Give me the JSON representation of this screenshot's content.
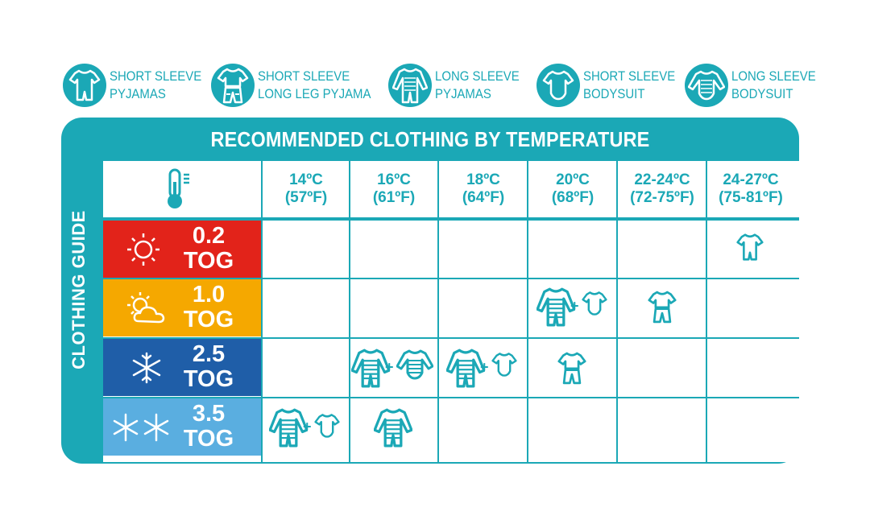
{
  "legend": [
    {
      "line1": "SHORT SLEEVE",
      "line2": "PYJAMAS",
      "icon": "short-sleeve-pyjamas-icon"
    },
    {
      "line1": "SHORT SLEEVE",
      "line2": "LONG LEG PYJAMA",
      "icon": "short-sleeve-long-leg-pyjama-icon"
    },
    {
      "line1": "LONG SLEEVE",
      "line2": "PYJAMAS",
      "icon": "long-sleeve-pyjamas-icon"
    },
    {
      "line1": "SHORT SLEEVE",
      "line2": "BODYSUIT",
      "icon": "short-sleeve-bodysuit-icon"
    },
    {
      "line1": "LONG SLEEVE",
      "line2": "BODYSUIT",
      "icon": "long-sleeve-bodysuit-icon"
    }
  ],
  "title": "RECOMMENDED CLOTHING BY TEMPERATURE",
  "side_label": "CLOTHING GUIDE",
  "header_icon": "thermometer-icon",
  "temperatures": [
    {
      "c": "14ºC",
      "f": "(57ºF)"
    },
    {
      "c": "16ºC",
      "f": "(61ºF)"
    },
    {
      "c": "18ºC",
      "f": "(64ºF)"
    },
    {
      "c": "20ºC",
      "f": "(68ºF)"
    },
    {
      "c": "22-24ºC",
      "f": "(72-75ºF)"
    },
    {
      "c": "24-27ºC",
      "f": "(75-81ºF)"
    }
  ],
  "tog_rows": [
    {
      "value": "0.2",
      "unit": "TOG",
      "color": "#e2231a",
      "icon": "sun-icon"
    },
    {
      "value": "1.0",
      "unit": "TOG",
      "color": "#f5a800",
      "icon": "sun-cloud-icon"
    },
    {
      "value": "2.5",
      "unit": "TOG",
      "color": "#1f5ea8",
      "icon": "snowflake-icon"
    },
    {
      "value": "3.5",
      "unit": "TOG",
      "color": "#5aaee0",
      "icon": "two-snowflakes-icon"
    }
  ],
  "plus_sign": "+",
  "colors": {
    "teal": "#1ba8b6",
    "white": "#ffffff"
  }
}
